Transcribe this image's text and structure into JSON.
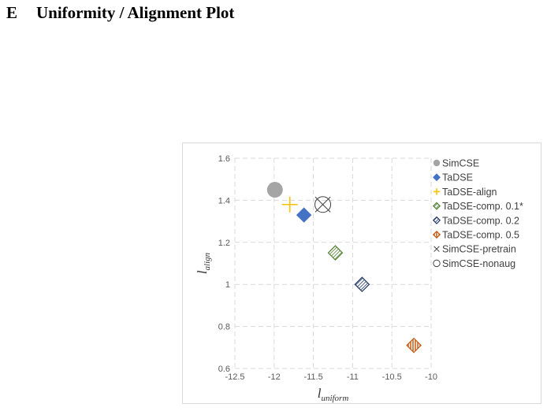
{
  "heading": {
    "number": "E",
    "title": "Uniformity / Alignment Plot"
  },
  "chart_data": {
    "type": "scatter",
    "xlabel": "l",
    "xlabel_sub": "uniform",
    "ylabel": "l",
    "ylabel_sub": "align",
    "xlim": [
      -12.5,
      -10
    ],
    "ylim": [
      0.6,
      1.6
    ],
    "x_ticks": [
      -12.5,
      -12,
      -11.5,
      -11,
      -10.5,
      -10
    ],
    "y_ticks": [
      0.6,
      0.8,
      1,
      1.2,
      1.4,
      1.6
    ],
    "x_tick_labels": [
      "-12.5",
      "-12",
      "-11.5",
      "-11",
      "-10.5",
      "-10"
    ],
    "y_tick_labels": [
      "0.6",
      "0.8",
      "1",
      "1.2",
      "1.4",
      "1.6"
    ],
    "grid": true,
    "legend_position": "right",
    "series": [
      {
        "name": "SimCSE",
        "marker": "circle",
        "color": "#a5a5a5",
        "x": -11.99,
        "y": 1.45
      },
      {
        "name": "TaDSE",
        "marker": "diamond",
        "color": "#4472c4",
        "x": -11.62,
        "y": 1.33
      },
      {
        "name": "TaDSE-align",
        "marker": "plus",
        "color": "#ffc000",
        "x": -11.8,
        "y": 1.38
      },
      {
        "name": "TaDSE-comp. 0.1*",
        "marker": "diamond-hatch",
        "color": "#548235",
        "x": -11.22,
        "y": 1.15
      },
      {
        "name": "TaDSE-comp. 0.2",
        "marker": "diamond-hatch",
        "color": "#1f3864",
        "x": -10.88,
        "y": 1.0
      },
      {
        "name": "TaDSE-comp. 0.5",
        "marker": "diamond-vhatch",
        "color": "#c55a11",
        "x": -10.22,
        "y": 0.71
      },
      {
        "name": "SimCSE-pretrain",
        "marker": "cross",
        "color": "#404040",
        "x": -11.38,
        "y": 1.38
      },
      {
        "name": "SimCSE-nonaug",
        "marker": "open-circle",
        "color": "#404040",
        "x": -11.38,
        "y": 1.38
      }
    ]
  }
}
